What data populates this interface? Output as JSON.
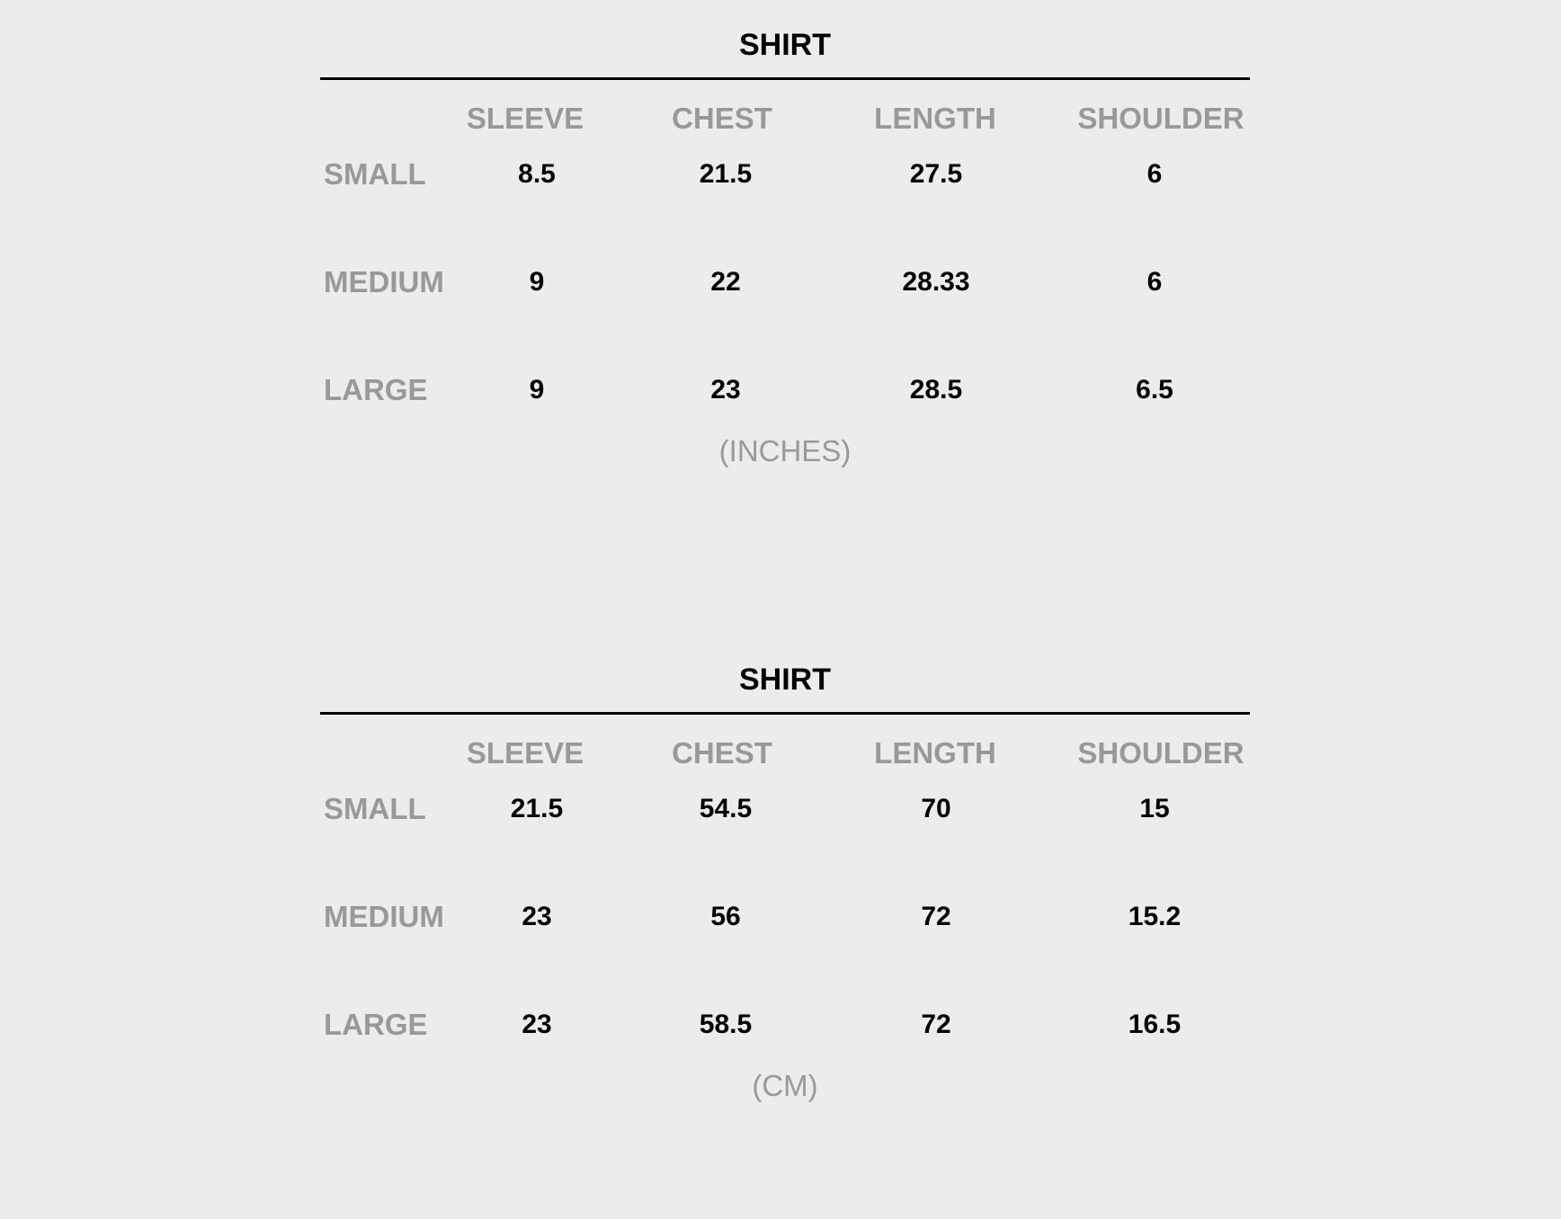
{
  "tables": [
    {
      "title": "SHIRT",
      "columns": [
        "SLEEVE",
        "CHEST",
        "LENGTH",
        "SHOULDER"
      ],
      "rows": [
        {
          "label": "SMALL",
          "values": [
            "8.5",
            "21.5",
            "27.5",
            "6"
          ]
        },
        {
          "label": "MEDIUM",
          "values": [
            "9",
            "22",
            "28.33",
            "6"
          ]
        },
        {
          "label": "LARGE",
          "values": [
            "9",
            "23",
            "28.5",
            "6.5"
          ]
        }
      ],
      "unit": "(INCHES)"
    },
    {
      "title": "SHIRT",
      "columns": [
        "SLEEVE",
        "CHEST",
        "LENGTH",
        "SHOULDER"
      ],
      "rows": [
        {
          "label": "SMALL",
          "values": [
            "21.5",
            "54.5",
            "70",
            "15"
          ]
        },
        {
          "label": "MEDIUM",
          "values": [
            "23",
            "56",
            "72",
            "15.2"
          ]
        },
        {
          "label": "LARGE",
          "values": [
            "23",
            "58.5",
            "72",
            "16.5"
          ]
        }
      ],
      "unit": "(CM)"
    }
  ],
  "colors": {
    "background": "#ececec",
    "label": "#999999",
    "value": "#000000"
  }
}
